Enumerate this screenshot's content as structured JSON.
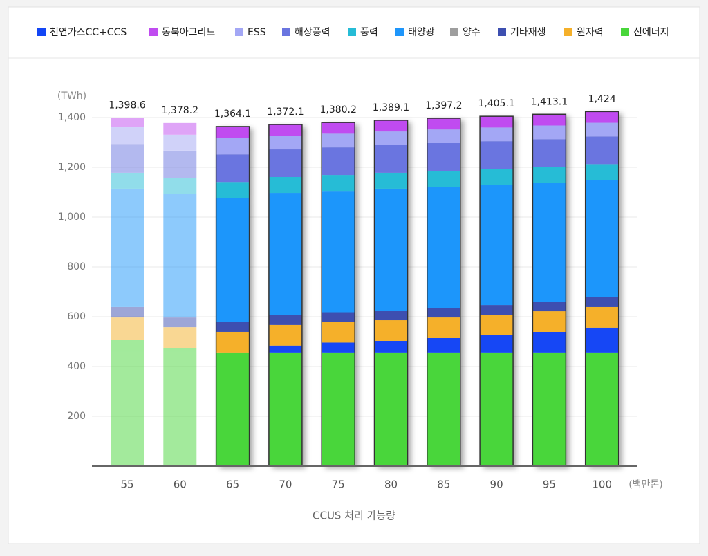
{
  "chart_data": {
    "type": "bar",
    "stacked": true,
    "y_unit": "(TWh)",
    "x_unit": "(백만톤)",
    "xlabel": "CCUS 처리 가능량",
    "categories": [
      "55",
      "60",
      "65",
      "70",
      "75",
      "80",
      "85",
      "90",
      "95",
      "100"
    ],
    "total_labels": [
      "1,398.6",
      "1,378.2",
      "1,364.1",
      "1,372.1",
      "1,380.2",
      "1,389.1",
      "1,397.2",
      "1,405.1",
      "1,413.1",
      "1,424"
    ],
    "series": [
      {
        "name": "천연가스CC+CCS",
        "color": "#1346f5",
        "values": [
          0,
          0,
          0,
          28,
          40,
          47,
          58,
          69,
          83,
          100
        ]
      },
      {
        "name": "동북아그리드",
        "color": "#c04cf0",
        "values": [
          37.6,
          47.2,
          45,
          45,
          45,
          45,
          45,
          45,
          45,
          45
        ]
      },
      {
        "name": "ESS",
        "color": "#a3a7f5",
        "values": [
          67,
          64,
          67,
          55,
          55,
          55,
          55,
          55,
          55,
          55
        ]
      },
      {
        "name": "해상풍력",
        "color": "#6a75e0",
        "values": [
          116,
          111,
          111,
          111,
          111,
          111,
          111,
          111,
          111,
          111
        ]
      },
      {
        "name": "풍력",
        "color": "#26bcd6",
        "values": [
          64,
          64,
          64,
          64,
          64,
          64,
          64,
          64,
          64,
          64
        ]
      },
      {
        "name": "태양광",
        "color": "#1e96fb",
        "values": [
          475,
          495,
          499.1,
          491.1,
          487.2,
          489.1,
          486.2,
          483.1,
          477.1,
          471
        ]
      },
      {
        "name": "양수",
        "color": "#9e9e9e",
        "values": [
          0,
          0,
          0,
          0,
          0,
          0,
          0,
          0,
          0,
          0
        ]
      },
      {
        "name": "기타재생",
        "color": "#3d4fb0",
        "values": [
          42,
          39,
          39,
          39,
          39,
          39,
          39,
          39,
          39,
          39
        ]
      },
      {
        "name": "원자력",
        "color": "#f5b02a",
        "values": [
          89,
          83,
          83,
          83,
          83,
          83,
          83,
          83,
          83,
          83
        ]
      },
      {
        "name": "신에너지",
        "color": "#48d63a",
        "values": [
          508,
          475,
          456,
          456,
          456,
          456,
          456,
          456,
          456,
          456
        ]
      }
    ],
    "ylim": [
      0,
      1400
    ],
    "yticks": [
      {
        "value": 200,
        "label": "200"
      },
      {
        "value": 400,
        "label": "400"
      },
      {
        "value": 600,
        "label": "600"
      },
      {
        "value": 800,
        "label": "800"
      },
      {
        "value": 1000,
        "label": "1,000"
      },
      {
        "value": 1200,
        "label": "1,200"
      },
      {
        "value": 1400,
        "label": "1,400"
      }
    ],
    "grid": true
  }
}
